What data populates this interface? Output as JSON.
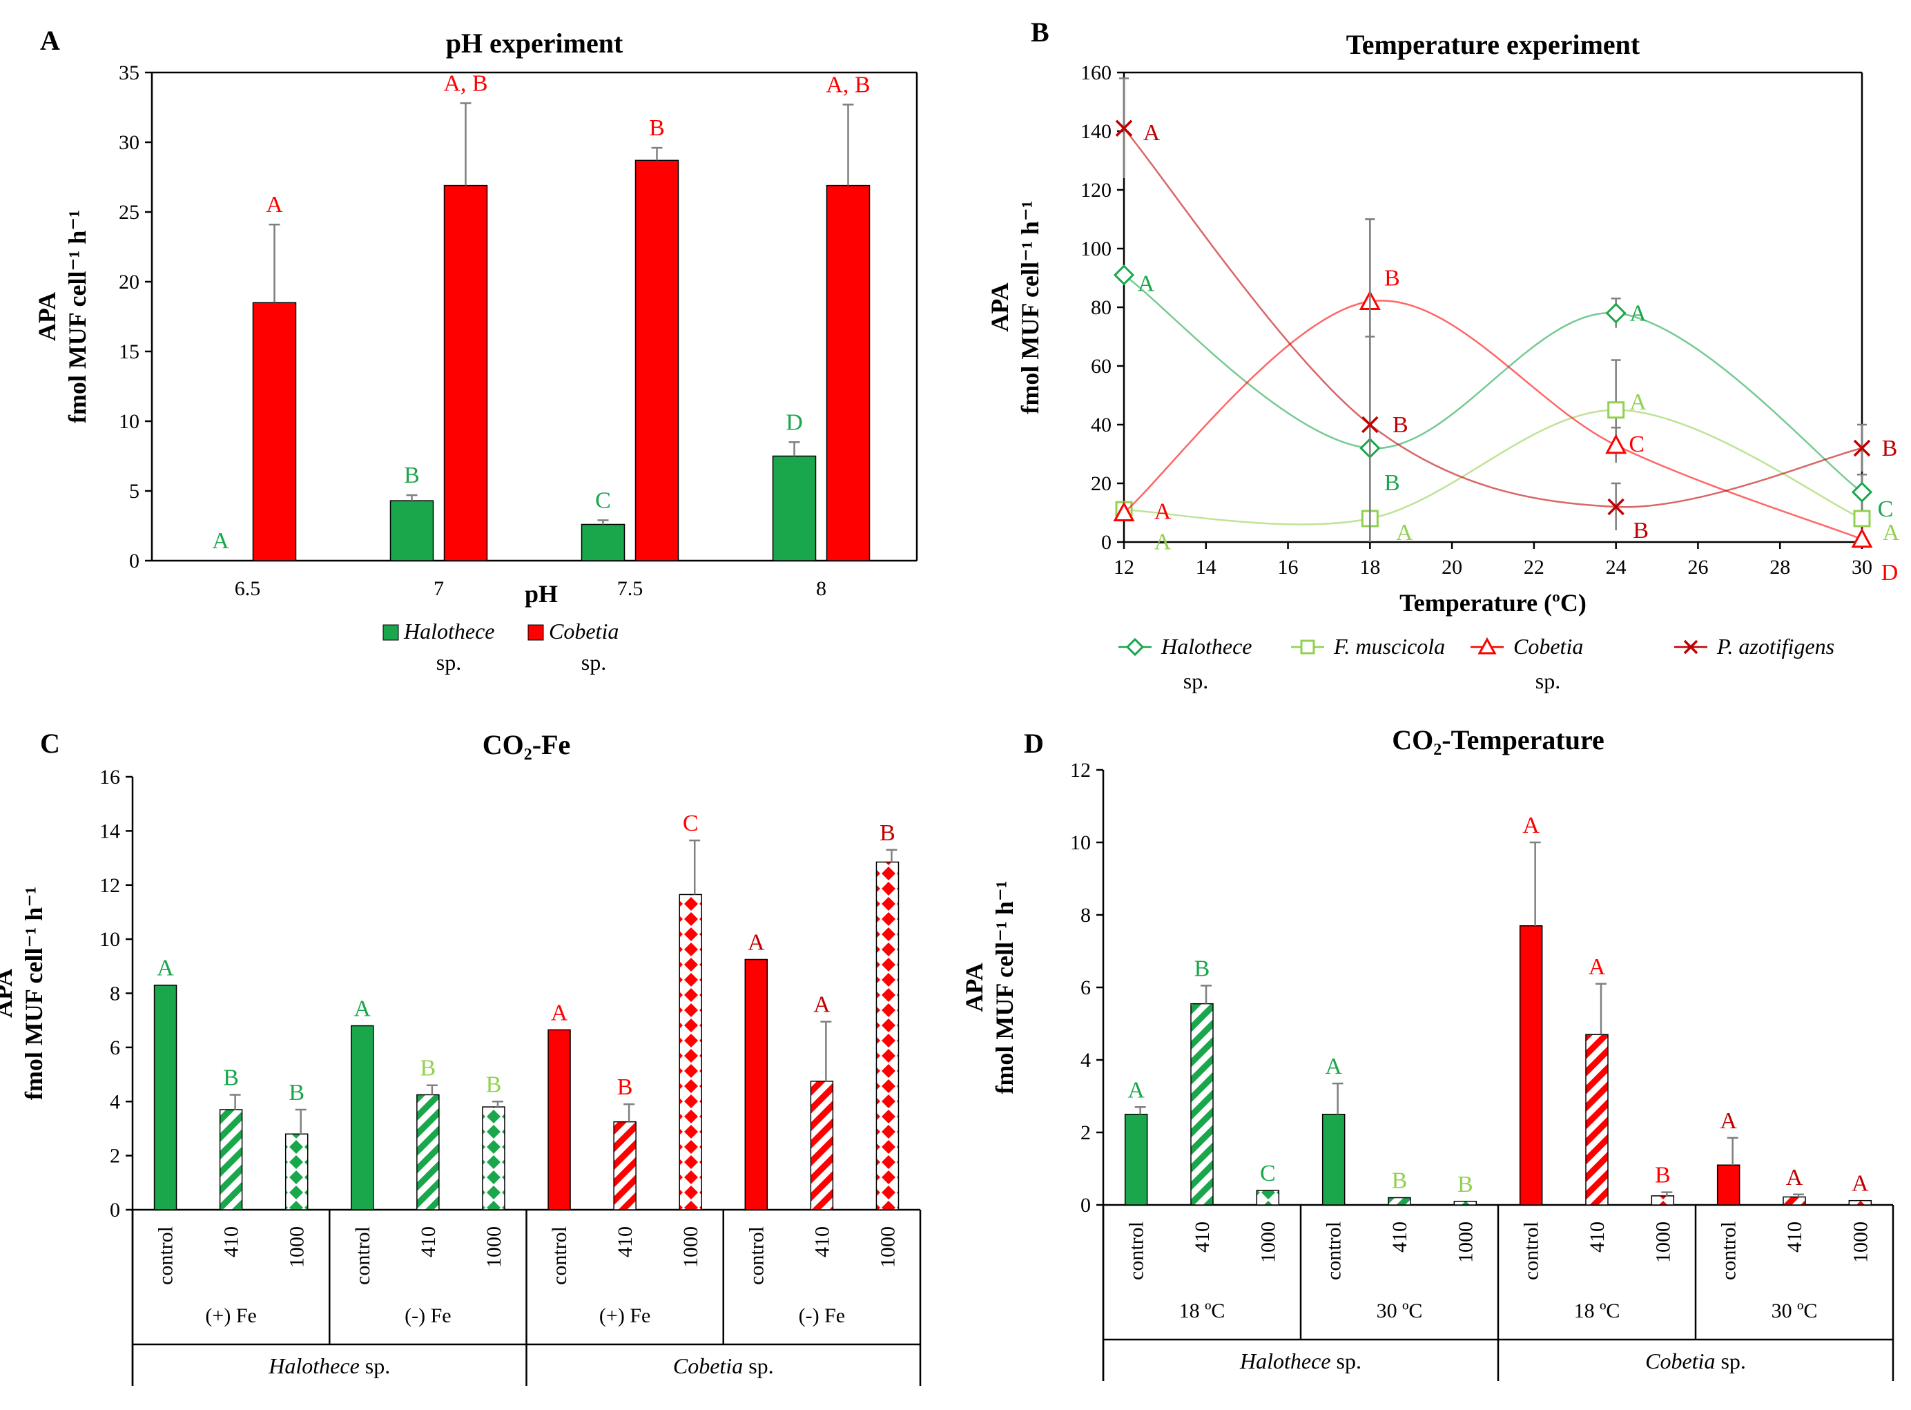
{
  "colors": {
    "green": "#1aa64b",
    "red": "#ff0000",
    "lightgreen": "#92d050",
    "darkred": "#c00000",
    "axis": "#000000",
    "error": "#7f7f7f"
  },
  "chart_data": [
    {
      "panel": "A",
      "type": "bar",
      "title": "pH experiment",
      "xlabel": "pH",
      "ylabel_line1": "APA",
      "ylabel_line2": "fmol MUF cell⁻¹ h⁻¹",
      "ylim": [
        0,
        35
      ],
      "yticks": [
        "0",
        "5",
        "10",
        "15",
        "20",
        "25",
        "30",
        "35"
      ],
      "categories": [
        "6.5",
        "7",
        "7.5",
        "8"
      ],
      "series": [
        {
          "name": "Halothece",
          "name_suffix": "sp.",
          "color": "green",
          "values": [
            0,
            4.3,
            2.6,
            7.5
          ],
          "errors": [
            0,
            0.4,
            0.3,
            1.0
          ],
          "letters": [
            "A",
            "B",
            "C",
            "D"
          ],
          "letter_color": "green"
        },
        {
          "name": "Cobetia",
          "name_suffix": "sp.",
          "color": "red",
          "values": [
            18.5,
            26.9,
            28.7,
            26.9
          ],
          "errors": [
            5.6,
            5.9,
            0.9,
            5.8
          ],
          "letters": [
            "A",
            "A, B",
            "B",
            "A, B"
          ],
          "letter_color": "red"
        }
      ]
    },
    {
      "panel": "B",
      "type": "line",
      "title": "Temperature experiment",
      "xlabel": "Temperature (ºC)",
      "ylabel_line1": "APA",
      "ylabel_line2": "fmol MUF cell⁻¹ h⁻¹",
      "xlim": [
        12,
        30
      ],
      "ylim": [
        0,
        160
      ],
      "xticks": [
        "12",
        "14",
        "16",
        "18",
        "20",
        "22",
        "24",
        "26",
        "28",
        "30"
      ],
      "yticks": [
        "0",
        "20",
        "40",
        "60",
        "80",
        "100",
        "120",
        "140",
        "160"
      ],
      "x": [
        12,
        18,
        24,
        30
      ],
      "series": [
        {
          "name": "Halothece",
          "name_suffix": "sp.",
          "italic": true,
          "color": "green",
          "marker": "diamond",
          "values": [
            91,
            32,
            78,
            17
          ],
          "errors": [
            0,
            38,
            5,
            6
          ],
          "letters": [
            "A",
            "B",
            "A",
            "C"
          ]
        },
        {
          "name": "F. muscicola",
          "name_suffix": "",
          "italic": true,
          "color": "lightgreen",
          "marker": "square",
          "values": [
            11,
            8,
            45,
            8
          ],
          "errors": [
            0,
            0,
            17,
            0
          ],
          "letters": [
            "A",
            "A",
            "A",
            "A"
          ]
        },
        {
          "name": "Cobetia",
          "name_suffix": "sp.",
          "italic": true,
          "color": "red",
          "marker": "triangle",
          "values": [
            10,
            82,
            33,
            1
          ],
          "errors": [
            0,
            28,
            6,
            0
          ],
          "letters": [
            "A",
            "B",
            "C",
            "D"
          ]
        },
        {
          "name": "P. azotifigens",
          "name_suffix": "",
          "italic": true,
          "color": "darkred",
          "marker": "x",
          "values": [
            141,
            40,
            12,
            32
          ],
          "errors": [
            17,
            70,
            8,
            8
          ],
          "letters": [
            "A",
            "B",
            "B",
            "B"
          ]
        }
      ]
    },
    {
      "panel": "C",
      "type": "bar",
      "title": "CO₂-Fe",
      "ylabel_line1": "APA",
      "ylabel_line2": "fmol MUF cell⁻¹ h⁻¹",
      "ylim": [
        0,
        16
      ],
      "yticks": [
        "0",
        "2",
        "4",
        "6",
        "8",
        "10",
        "12",
        "14",
        "16"
      ],
      "categories": [
        "control",
        "410",
        "1000",
        "control",
        "410",
        "1000",
        "control",
        "410",
        "1000",
        "control",
        "410",
        "1000"
      ],
      "values": [
        8.3,
        3.7,
        2.8,
        6.8,
        4.25,
        3.8,
        6.65,
        3.25,
        11.65,
        9.25,
        4.75,
        12.85
      ],
      "errors": [
        0,
        0.55,
        0.9,
        0,
        0.35,
        0.2,
        0,
        0.65,
        2.0,
        0,
        2.2,
        0.45
      ],
      "letters": [
        "A",
        "B",
        "B",
        "A",
        "B",
        "B",
        "A",
        "B",
        "C",
        "A",
        "A",
        "B"
      ],
      "group1_labels": [
        "(+) Fe",
        "(-) Fe",
        "(+) Fe",
        "(-) Fe"
      ],
      "group2_labels": [
        {
          "it": "Halothece",
          "rest": " sp."
        },
        {
          "it": "Cobetia",
          "rest": " sp."
        }
      ]
    },
    {
      "panel": "D",
      "type": "bar",
      "title": "CO₂-Temperature",
      "ylabel_line1": "APA",
      "ylabel_line2": "fmol MUF cell⁻¹ h⁻¹",
      "ylim": [
        0,
        12
      ],
      "yticks": [
        "0",
        "2",
        "4",
        "6",
        "8",
        "10",
        "12"
      ],
      "categories": [
        "control",
        "410",
        "1000",
        "control",
        "410",
        "1000",
        "control",
        "410",
        "1000",
        "control",
        "410",
        "1000"
      ],
      "values": [
        2.5,
        5.55,
        0.4,
        2.5,
        0.2,
        0.1,
        7.7,
        4.7,
        0.25,
        1.1,
        0.22,
        0.12
      ],
      "errors": [
        0.2,
        0.5,
        0,
        0.85,
        0,
        0,
        2.3,
        1.4,
        0.1,
        0.75,
        0.07,
        0
      ],
      "letters": [
        "A",
        "B",
        "C",
        "A",
        "B",
        "B",
        "A",
        "A",
        "B",
        "A",
        "A",
        "A"
      ],
      "group1_labels": [
        "18 ºC",
        "30 ºC",
        "18 ºC",
        "30 ºC"
      ],
      "group2_labels": [
        {
          "it": "Halothece",
          "rest": " sp."
        },
        {
          "it": "Cobetia",
          "rest": " sp."
        }
      ]
    }
  ]
}
